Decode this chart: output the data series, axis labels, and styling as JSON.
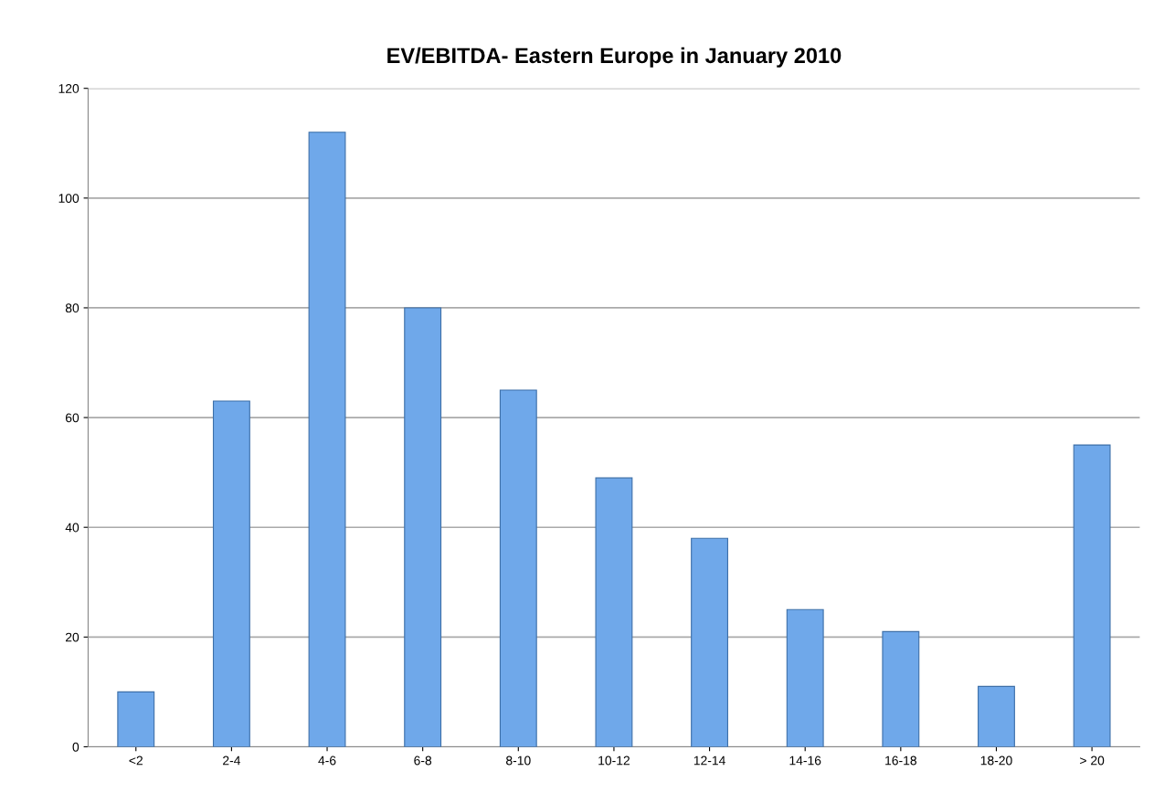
{
  "chart_data": {
    "type": "bar",
    "title": "EV/EBITDA- Eastern Europe in January 2010",
    "categories": [
      "<2",
      "2-4",
      "4-6",
      "6-8",
      "8-10",
      "10-12",
      "12-14",
      "14-16",
      "16-18",
      "18-20",
      "> 20"
    ],
    "values": [
      10,
      63,
      112,
      80,
      65,
      49,
      38,
      25,
      21,
      11,
      55
    ],
    "color": "#6fa8ea",
    "ylim": [
      0,
      120
    ],
    "yticks": [
      0,
      20,
      40,
      60,
      80,
      100,
      120
    ],
    "grid": "y"
  }
}
